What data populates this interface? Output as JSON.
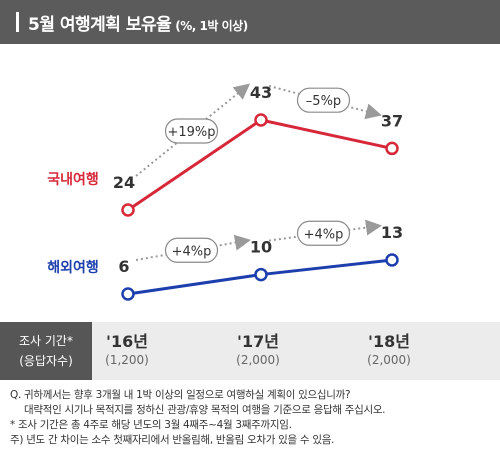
{
  "header": {
    "title": "5월 여행계획 보유율",
    "unit": "(%, 1박 이상)"
  },
  "chart_data": {
    "type": "line",
    "title": "5월 여행계획 보유율",
    "x": [
      "'16년",
      "'17년",
      "'18년"
    ],
    "series": [
      {
        "name": "국내여행",
        "values": [
          24,
          43,
          37
        ],
        "color": "#d7283a"
      },
      {
        "name": "해외여행",
        "values": [
          6,
          10,
          13
        ],
        "color": "#1d3fae"
      }
    ],
    "changes": [
      {
        "series": "국내여행",
        "from": 0,
        "to": 1,
        "label": "+19%p"
      },
      {
        "series": "국내여행",
        "from": 1,
        "to": 2,
        "label": "–5%p"
      },
      {
        "series": "해외여행",
        "from": 0,
        "to": 1,
        "label": "+4%p"
      },
      {
        "series": "해외여행",
        "from": 1,
        "to": 2,
        "label": "+4%p"
      }
    ],
    "grid": false,
    "legend": "inline-left"
  },
  "footer": {
    "label_line1": "조사 기간*",
    "label_line2": "(응답자수)",
    "years": [
      "'16년",
      "'17년",
      "'18년"
    ],
    "counts": [
      "(1,200)",
      "(2,000)",
      "(2,000)"
    ]
  },
  "notes": [
    "Q. 귀하께서는 향후 3개월 내 1박 이상의 일정으로 여행하실 계획이 있으십니까?",
    "대략적인 시기나 목적지를 정하신 관광/휴양 목적의 여행을 기준으로 응답해 주십시오.",
    "* 조사 기간은 총 4주로 해당 년도의 3월 4째주~4월 3째주까지임.",
    "주) 년도 간 차이는 소수 첫째자리에서 반올림해, 반올림 오차가 있을 수 있음."
  ]
}
